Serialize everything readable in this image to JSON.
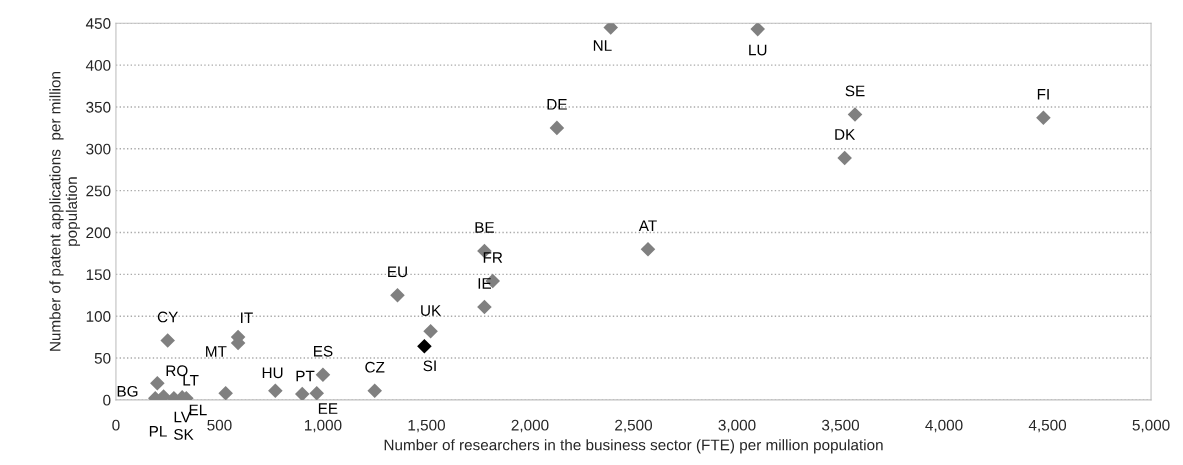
{
  "chart_data": {
    "type": "scatter",
    "xlabel": "Number of researchers in the business sector (FTE) per million population",
    "ylabel": "Number of patent applications  per million\npopulation",
    "value_labels": [
      "NL",
      "LU",
      "DE",
      "SE",
      "DK",
      "FI",
      "AT",
      "FR",
      "BE",
      "EU",
      "IE",
      "UK",
      "SI",
      "CZ",
      "ES",
      "EE",
      "PT",
      "HU",
      "EL",
      "LT",
      "LV",
      "SK",
      "PL",
      "RO",
      "BG",
      "CY",
      "IT",
      "MT"
    ],
    "x": [
      2390,
      3100,
      2130,
      3570,
      3520,
      4480,
      2570,
      1820,
      1780,
      1360,
      1780,
      1520,
      1490,
      1250,
      1000,
      970,
      900,
      770,
      530,
      280,
      320,
      340,
      230,
      200,
      190,
      250,
      590,
      590
    ],
    "values": [
      445,
      443,
      325,
      341,
      289,
      337,
      180,
      142,
      178,
      125,
      111,
      82,
      64,
      11,
      30,
      8,
      7,
      11,
      8,
      2,
      3,
      2,
      4,
      20,
      2,
      71,
      75,
      68
    ],
    "colors": [
      "#808080",
      "#808080",
      "#808080",
      "#808080",
      "#808080",
      "#808080",
      "#808080",
      "#808080",
      "#808080",
      "#808080",
      "#808080",
      "#808080",
      "#000000",
      "#808080",
      "#808080",
      "#808080",
      "#808080",
      "#808080",
      "#808080",
      "#808080",
      "#808080",
      "#808080",
      "#808080",
      "#808080",
      "#808080",
      "#808080",
      "#808080",
      "#808080"
    ],
    "marker": "diamond",
    "xlim": [
      0,
      5000
    ],
    "xticks": [
      0,
      {
        "value": 500,
        "label": "500"
      },
      {
        "value": 1000,
        "label": "1,000"
      },
      {
        "value": 1500,
        "label": "1,500"
      },
      {
        "value": 2000,
        "label": "2,000"
      },
      {
        "value": 2500,
        "label": "2,500"
      },
      {
        "value": 3000,
        "label": "3,000"
      },
      {
        "value": 3500,
        "label": "3,500"
      },
      {
        "value": 4000,
        "label": "4,000"
      },
      {
        "value": 4500,
        "label": "4,500"
      },
      {
        "value": 5000,
        "label": "5,000"
      }
    ],
    "ylim": [
      0,
      450
    ],
    "yticks": [
      0,
      50,
      100,
      150,
      200,
      250,
      300,
      350,
      400,
      450
    ],
    "grid": "y"
  }
}
